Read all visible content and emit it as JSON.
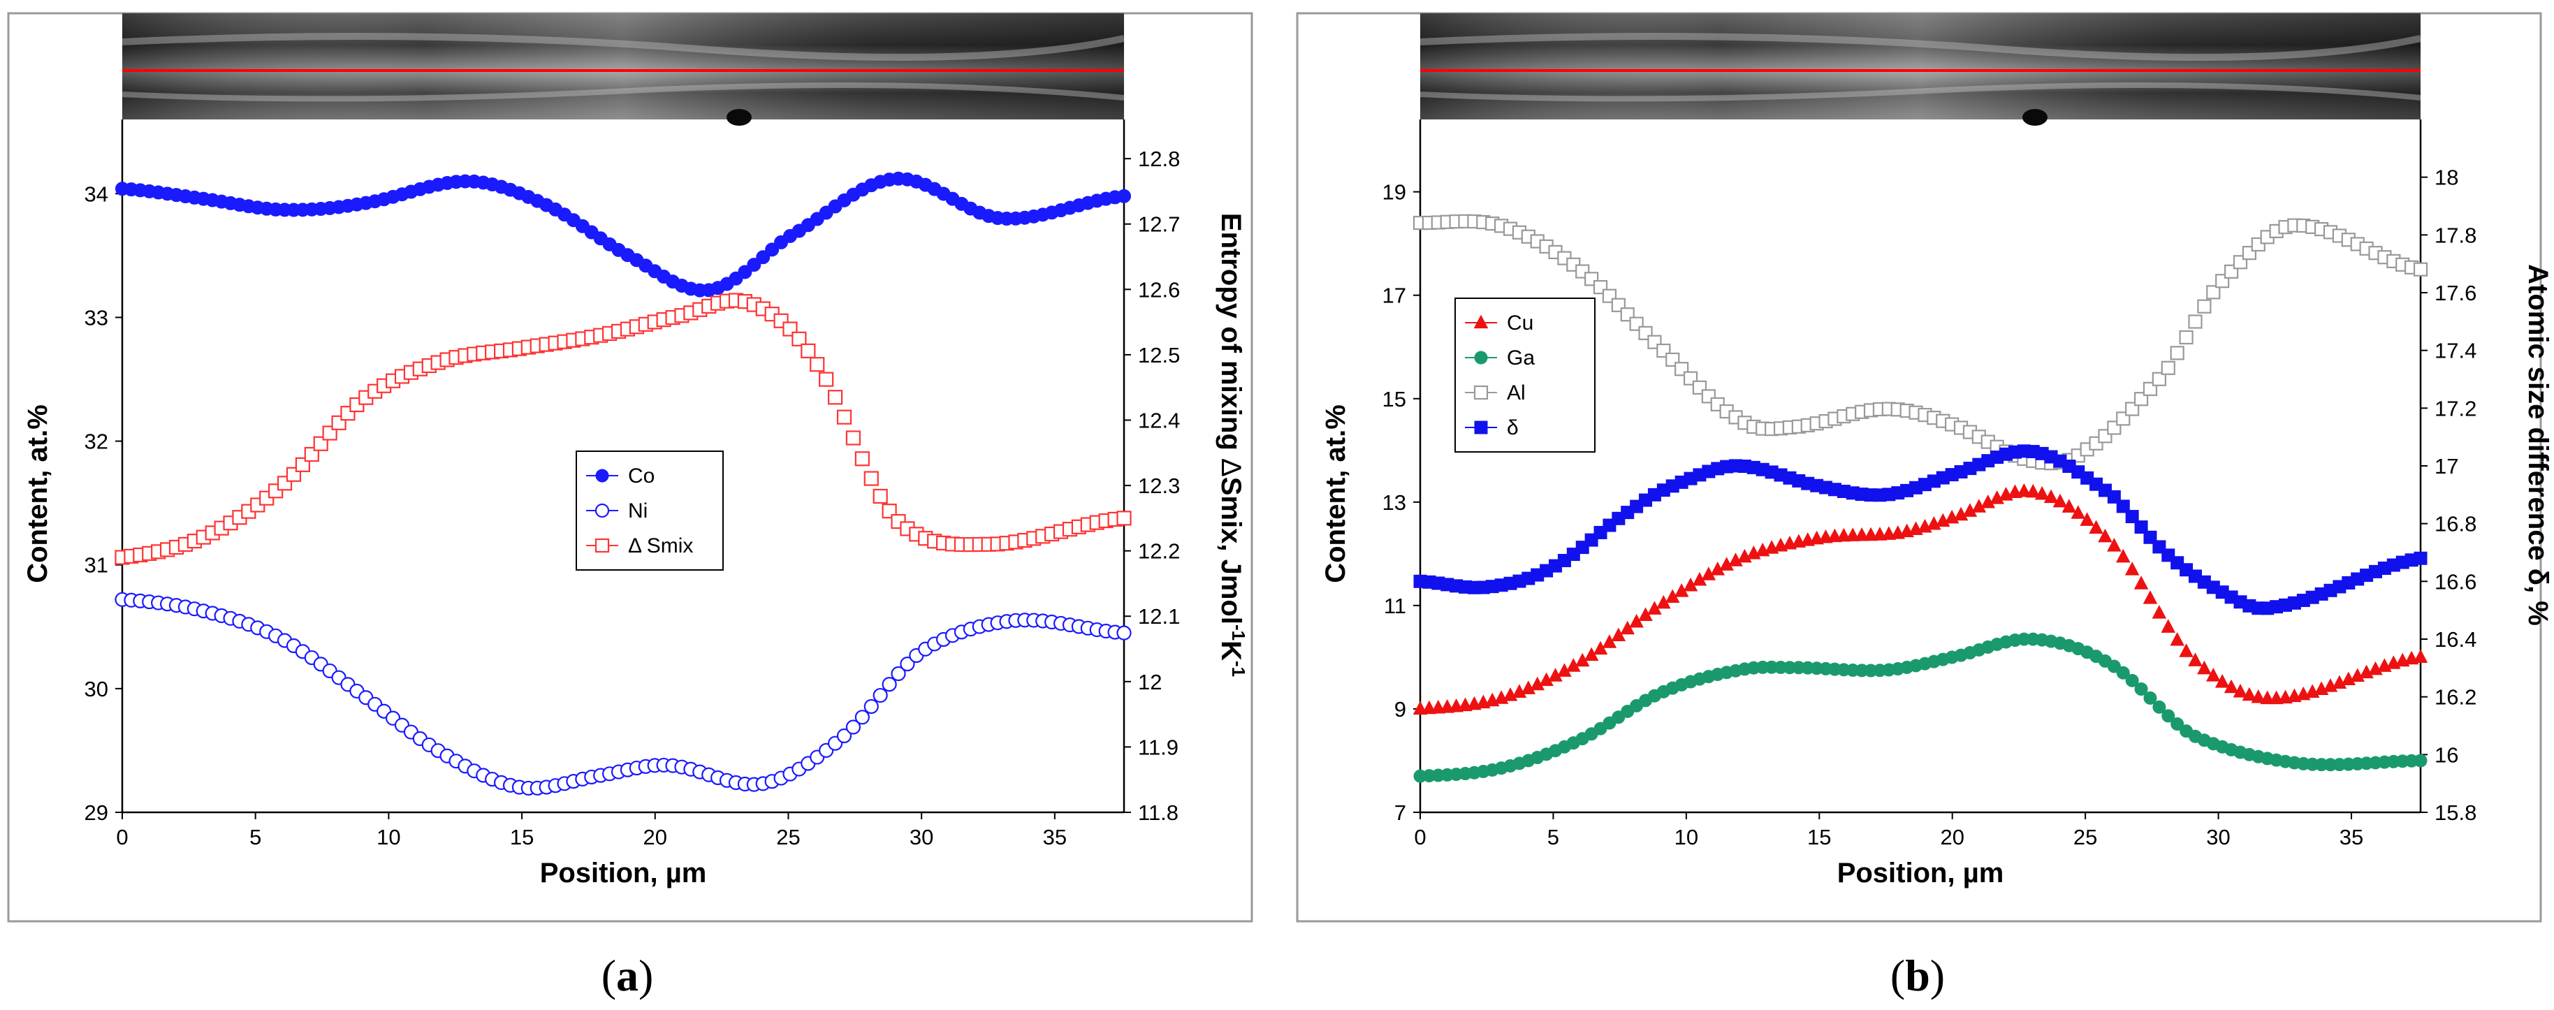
{
  "captions": {
    "a_open": "(",
    "a_letter": "a",
    "a_close": ")",
    "b_open": "(",
    "b_letter": "b",
    "b_close": ")"
  },
  "chart_data": [
    {
      "id": "a",
      "type": "scatter",
      "xlabel": "Position, µm",
      "ylabel": "Content, at.%",
      "y2label_parts": [
        "Entropy of mixing ",
        "Δ",
        "Smix, Jmol",
        "-1",
        "K",
        "-1"
      ],
      "xlim": [
        0,
        37.6
      ],
      "ylim": [
        29,
        34.6
      ],
      "y2lim": [
        11.8,
        12.86
      ],
      "xticks": [
        0,
        5,
        10,
        15,
        20,
        25,
        30,
        35
      ],
      "yticks": [
        29,
        30,
        31,
        32,
        33,
        34
      ],
      "y2ticks": [
        11.8,
        11.9,
        12,
        12.1,
        12.2,
        12.3,
        12.4,
        12.5,
        12.6,
        12.7,
        12.8
      ],
      "legend": {
        "position": "center-right"
      },
      "series": [
        {
          "name": "Co",
          "axis": "left",
          "marker": "circle-filled",
          "color": "#1a1aff",
          "x": [
            0,
            3,
            6,
            9,
            13,
            16,
            19,
            22,
            25,
            29,
            33,
            37.6
          ],
          "y": [
            34.04,
            33.96,
            33.87,
            33.92,
            34.1,
            33.9,
            33.5,
            33.22,
            33.65,
            34.12,
            33.8,
            33.98
          ]
        },
        {
          "name": "Ni",
          "axis": "left",
          "marker": "circle-open",
          "color": "#1a1aff",
          "x": [
            0,
            3,
            6,
            9,
            12,
            15,
            18,
            20.5,
            24,
            27,
            30,
            33.5,
            37.6
          ],
          "y": [
            30.72,
            30.63,
            30.4,
            29.95,
            29.48,
            29.2,
            29.3,
            29.38,
            29.23,
            29.6,
            30.3,
            30.55,
            30.45
          ]
        },
        {
          "name": "Δ Smix",
          "axis": "right",
          "marker": "square-open",
          "color": "#ff3333",
          "x": [
            0,
            3,
            6,
            9,
            12,
            15,
            18,
            21,
            23.5,
            26,
            29,
            32.5,
            37.6
          ],
          "y": [
            12.19,
            12.22,
            12.3,
            12.43,
            12.49,
            12.51,
            12.53,
            12.56,
            12.58,
            12.49,
            12.25,
            12.21,
            12.25
          ]
        }
      ]
    },
    {
      "id": "b",
      "type": "scatter",
      "xlabel": "Position, µm",
      "ylabel": "Content, at.%",
      "y2label": "Atomic size difference  δ, %",
      "xlim": [
        0,
        37.6
      ],
      "ylim": [
        7,
        20.4
      ],
      "y2lim": [
        15.8,
        18.2
      ],
      "xticks": [
        0,
        5,
        10,
        15,
        20,
        25,
        30,
        35
      ],
      "yticks": [
        7,
        9,
        11,
        13,
        15,
        17,
        19
      ],
      "y2ticks": [
        15.8,
        16,
        16.2,
        16.4,
        16.6,
        16.8,
        17,
        17.2,
        17.4,
        17.6,
        17.8,
        18
      ],
      "legend": {
        "position": "center-left"
      },
      "series": [
        {
          "name": "Cu",
          "axis": "left",
          "marker": "triangle-filled",
          "color": "#ee1111",
          "x": [
            0,
            3,
            6,
            9,
            12,
            15,
            18,
            20,
            23,
            26,
            29,
            32,
            37.6
          ],
          "y": [
            9.0,
            9.2,
            9.9,
            11.0,
            11.9,
            12.3,
            12.4,
            12.7,
            13.2,
            12.2,
            10.0,
            9.2,
            10.0
          ]
        },
        {
          "name": "Ga",
          "axis": "left",
          "marker": "circle-filled",
          "color": "#1a9a6c",
          "x": [
            0,
            3,
            6,
            9,
            12,
            14,
            17.5,
            20,
            23,
            26,
            29,
            33,
            37.6
          ],
          "y": [
            7.7,
            7.85,
            8.4,
            9.3,
            9.75,
            9.8,
            9.75,
            10.0,
            10.35,
            9.85,
            8.5,
            7.95,
            8.0
          ]
        },
        {
          "name": "Al",
          "axis": "left",
          "marker": "square-open",
          "color": "#999999",
          "x": [
            0,
            3,
            6,
            9,
            12,
            14,
            17.5,
            20,
            23,
            25,
            28,
            30,
            32.8,
            37.6
          ],
          "y": [
            18.4,
            18.35,
            17.5,
            16.0,
            14.6,
            14.45,
            14.8,
            14.5,
            13.8,
            14.0,
            15.5,
            17.2,
            18.35,
            17.5
          ]
        },
        {
          "name": "δ",
          "axis": "right",
          "marker": "square-filled",
          "color": "#1111ee",
          "x": [
            0,
            2.5,
            5,
            8,
            10,
            12,
            15,
            17.5,
            20,
            23,
            26,
            28,
            30,
            32,
            37.6
          ],
          "y": [
            16.6,
            16.58,
            16.65,
            16.85,
            16.95,
            17.0,
            16.93,
            16.9,
            16.97,
            17.05,
            16.9,
            16.7,
            16.57,
            16.51,
            16.68
          ]
        }
      ]
    }
  ]
}
